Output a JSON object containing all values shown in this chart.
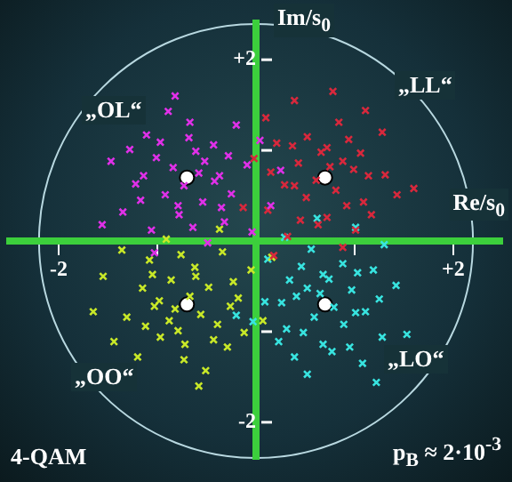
{
  "chart_data": {
    "type": "scatter",
    "xlabel": "Re/s$_{0}$",
    "ylabel": "Im/s$_{0}$",
    "xlim": [
      -2.5,
      2.5
    ],
    "ylim": [
      -2.4,
      2.4
    ],
    "xticks": [
      -2,
      {
        "value": -1,
        "label": null
      },
      {
        "value": 1,
        "label": null
      },
      {
        "value": 2,
        "label": "+2"
      }
    ],
    "yticks": [
      -2,
      {
        "value": -1,
        "label": null
      },
      {
        "value": 1,
        "label": null
      },
      {
        "value": 2,
        "label": "+2"
      }
    ],
    "grid": false,
    "legend": false,
    "marker": "cross",
    "series": [
      {
        "color": "#e030e8",
        "x": [
          -0.58,
          -1.01,
          -0.25,
          -0.78,
          -0.43,
          -1.22,
          -0.67,
          -0.32,
          -0.92,
          -0.09,
          -1.11,
          -0.54,
          -1.35,
          -0.61,
          -0.37,
          -0.84,
          -0.49,
          -1.06,
          0.04,
          -0.73,
          -0.2,
          -1.47,
          -0.42,
          -0.89,
          -0.64,
          -1.17,
          0.15,
          -0.97,
          -0.52,
          -0.79,
          -0.28,
          -1.28,
          -0.35,
          -1.03,
          -0.68,
          -1.56,
          -0.04,
          -0.82,
          0.25,
          -1.14
        ],
        "values": [
          0.75,
          0.92,
          0.52,
          0.29,
          1.06,
          0.63,
          1.31,
          0.21,
          0.51,
          0.84,
          1.17,
          0.43,
          0.32,
          0.99,
          0.72,
          0.81,
          -0.02,
          0.12,
          1.11,
          0.61,
          1.28,
          0.88,
          0.66,
          1.43,
          0.15,
          0.45,
          0.39,
          1.09,
          0.88,
          0.39,
          0.94,
          1.01,
          0.37,
          -0.13,
          1.14,
          0.18,
          0.1,
          1.6,
          0.78,
          0.72
        ]
      },
      {
        "color": "#d8283c",
        "x": [
          0.75,
          0.92,
          0.52,
          0.29,
          1.06,
          0.63,
          1.31,
          0.21,
          0.51,
          0.84,
          1.17,
          0.43,
          0.32,
          0.99,
          0.72,
          0.81,
          -0.02,
          0.12,
          1.11,
          0.61,
          1.28,
          0.88,
          0.66,
          1.43,
          0.15,
          0.45,
          0.39,
          1.09,
          0.88,
          0.39,
          0.94,
          1.01,
          0.37,
          -0.13,
          1.14,
          0.18,
          0.1,
          1.6,
          0.78,
          0.72
        ],
        "values": [
          0.82,
          0.39,
          1.15,
          0.62,
          0.97,
          0.18,
          0.73,
          1.08,
          0.48,
          1.31,
          0.29,
          0.86,
          0.05,
          0.79,
          1.03,
          0.56,
          0.91,
          0.34,
          1.44,
          0.67,
          1.2,
          -0.07,
          0.98,
          0.51,
          0.76,
          0.23,
          1.55,
          0.43,
          0.88,
          0.61,
          1.12,
          0.12,
          1.05,
          0.37,
          0.72,
          -0.16,
          1.36,
          0.58,
          1.65,
          0.26
        ]
      },
      {
        "color": "#c8e828",
        "x": [
          -0.82,
          -0.39,
          -1.15,
          -0.62,
          -0.97,
          -0.18,
          -0.73,
          -1.08,
          -0.48,
          -1.31,
          -0.29,
          -0.86,
          -0.05,
          -0.79,
          -1.03,
          -0.56,
          -0.91,
          -0.34,
          -1.44,
          -0.67,
          -1.2,
          0.07,
          -0.98,
          -0.51,
          -0.76,
          -0.23,
          -1.55,
          -0.43,
          -0.88,
          -0.61,
          -1.12,
          -0.12,
          -1.05,
          -0.37,
          -0.72,
          0.16,
          -1.36,
          -0.58,
          -1.65,
          -0.26
        ],
        "values": [
          -0.75,
          -0.92,
          -0.52,
          -0.29,
          -1.06,
          -0.63,
          -1.31,
          -0.21,
          -0.51,
          -0.84,
          -1.17,
          -0.43,
          -0.32,
          -0.99,
          -0.72,
          -0.81,
          0.02,
          -0.12,
          -1.11,
          -0.61,
          -1.28,
          -0.88,
          -0.66,
          -1.43,
          -0.15,
          -0.45,
          -0.39,
          -1.09,
          -0.88,
          -0.39,
          -0.94,
          -1.01,
          -0.37,
          0.13,
          -1.14,
          -0.18,
          -0.1,
          -1.6,
          -0.78,
          -0.72
        ]
      },
      {
        "color": "#38e4e0",
        "x": [
          0.65,
          0.48,
          0.88,
          1.11,
          0.34,
          0.77,
          0.09,
          1.19,
          0.89,
          0.56,
          0.23,
          0.97,
          1.08,
          0.41,
          0.68,
          0.59,
          1.42,
          1.28,
          0.29,
          0.79,
          0.12,
          0.52,
          0.74,
          -0.03,
          1.25,
          0.95,
          1.01,
          0.31,
          0.52,
          1.01,
          0.46,
          0.39,
          1.03,
          1.53,
          0.26,
          1.22,
          1.3,
          -0.2,
          0.62,
          0.68
        ],
        "values": [
          -0.58,
          -1.01,
          -0.25,
          -0.78,
          -0.43,
          -1.22,
          -0.67,
          -0.32,
          -0.92,
          -0.09,
          -1.11,
          -0.54,
          -1.35,
          -0.61,
          -0.37,
          -0.84,
          -0.49,
          -1.06,
          0.04,
          -0.73,
          -0.2,
          -1.47,
          -0.42,
          -0.89,
          -0.64,
          -1.17,
          0.15,
          -0.97,
          -0.52,
          -0.79,
          -0.28,
          -1.28,
          -0.35,
          -1.03,
          -0.68,
          -1.56,
          -0.04,
          -0.82,
          0.25,
          -1.14
        ]
      },
      {
        "color": "#ffffff",
        "marker": "circle",
        "x": [
          -0.7,
          0.7,
          -0.7,
          0.7
        ],
        "values": [
          0.7,
          0.7,
          -0.7,
          -0.7
        ]
      }
    ],
    "annotations": [
      "„OL“",
      "„LL“",
      "„OO“",
      "„LO“",
      "4-QAM",
      "p$_{B}$ ≈ 2·10$^{-3}$"
    ]
  }
}
